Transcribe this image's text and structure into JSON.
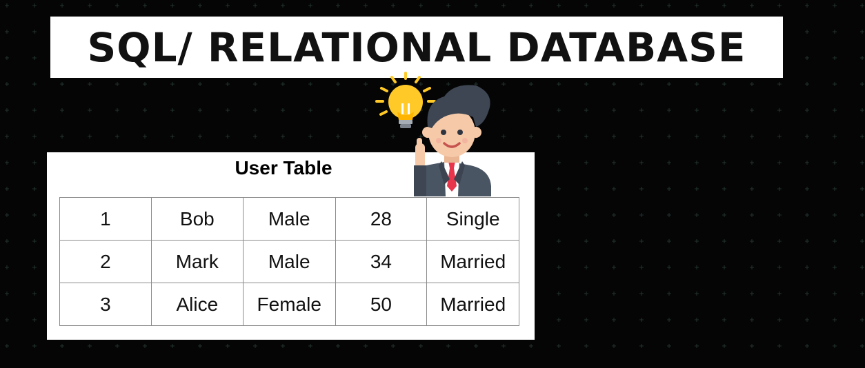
{
  "title": "SQL/ RELATIONAL DATABASE",
  "table": {
    "caption": "User Table",
    "rows": [
      [
        "1",
        "Bob",
        "Male",
        "28",
        "Single"
      ],
      [
        "2",
        "Mark",
        "Male",
        "34",
        "Married"
      ],
      [
        "3",
        "Alice",
        "Female",
        "50",
        "Married"
      ]
    ]
  },
  "illustration": {
    "icon": "businessman-idea-icon",
    "colors": {
      "hair": "#3d4652",
      "skin": "#f6c9a8",
      "suit": "#4a5563",
      "tie": "#e8354b",
      "bulb": "#ffc928",
      "background": "#050505"
    }
  }
}
